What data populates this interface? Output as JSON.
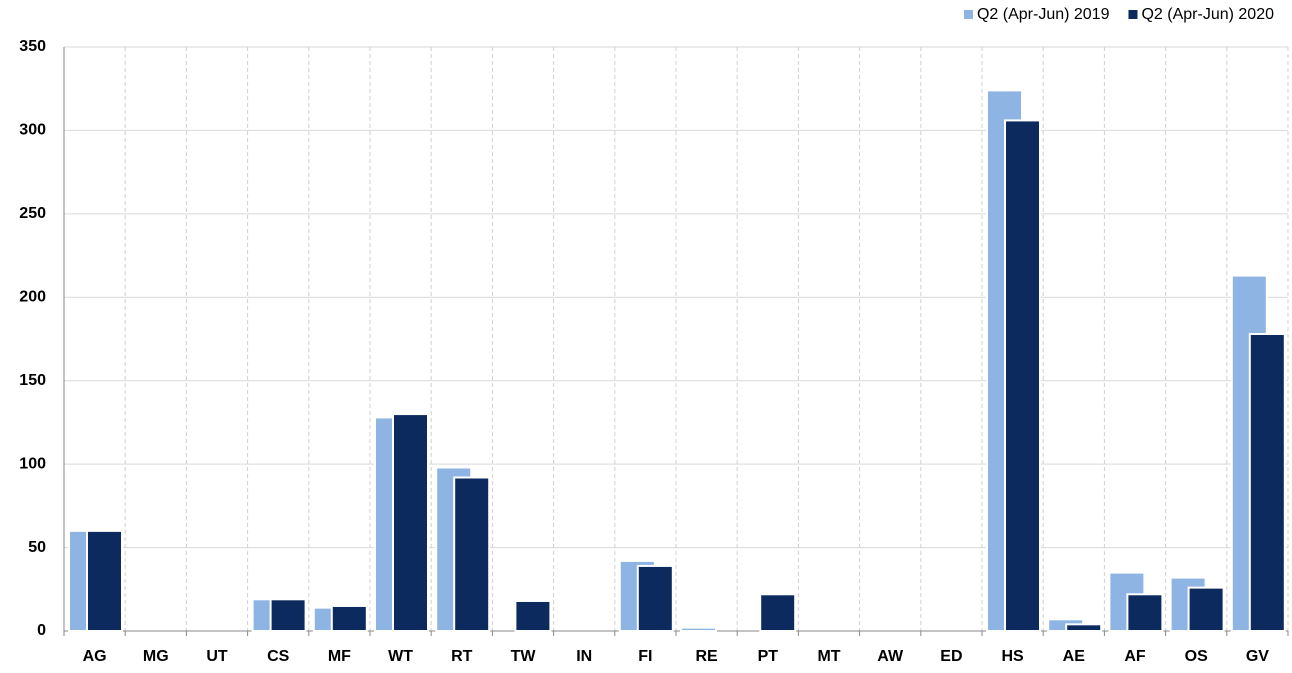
{
  "chart_data": {
    "type": "bar",
    "categories": [
      "AG",
      "MG",
      "UT",
      "CS",
      "MF",
      "WT",
      "RT",
      "TW",
      "IN",
      "FI",
      "RE",
      "PT",
      "MT",
      "AW",
      "ED",
      "HS",
      "AE",
      "AF",
      "OS",
      "GV"
    ],
    "series": [
      {
        "name": "Q2 (Apr-Jun) 2019",
        "color": "#8eb4e3",
        "values": [
          60,
          0,
          0,
          19,
          14,
          128,
          98,
          0,
          0,
          42,
          2,
          0,
          0,
          0,
          0,
          324,
          7,
          35,
          32,
          213
        ]
      },
      {
        "name": "Q2 (Apr-Jun) 2020",
        "color": "#0c2a5e",
        "values": [
          60,
          0,
          0,
          19,
          15,
          130,
          92,
          18,
          0,
          39,
          0,
          22,
          0,
          0,
          0,
          306,
          4,
          22,
          26,
          178
        ]
      }
    ],
    "ylim": [
      0,
      350
    ],
    "yticks": [
      0,
      50,
      100,
      150,
      200,
      250,
      300,
      350
    ],
    "grid": true,
    "legend": "top-right"
  }
}
